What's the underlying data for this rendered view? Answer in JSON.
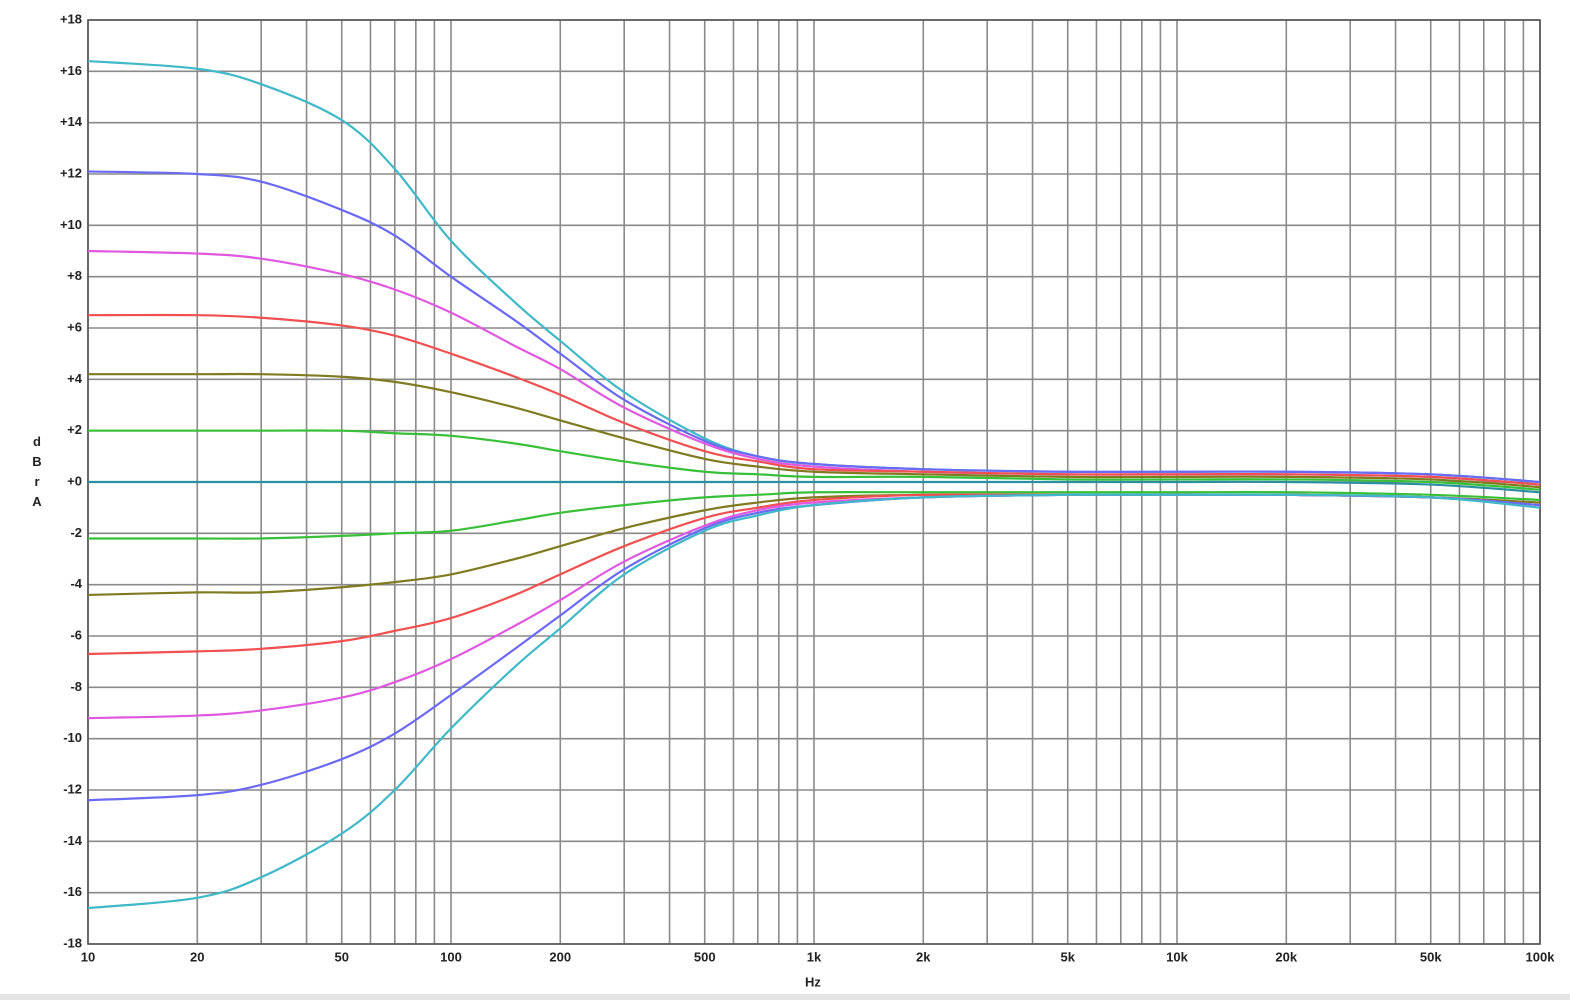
{
  "chart_data": {
    "type": "line",
    "x_label": "Hz",
    "y_label": "dBr A",
    "log_x": true,
    "grid": true,
    "xlim": [
      10,
      100000
    ],
    "ylim": [
      -18,
      18
    ],
    "xticks": [
      10,
      20,
      50,
      100,
      200,
      500,
      {
        "value": 1000,
        "label": "1k"
      },
      {
        "value": 2000,
        "label": "2k"
      },
      {
        "value": 5000,
        "label": "5k"
      },
      {
        "value": 10000,
        "label": "10k"
      },
      {
        "value": 20000,
        "label": "20k"
      },
      {
        "value": 50000,
        "label": "50k"
      },
      {
        "value": 100000,
        "label": "100k"
      }
    ],
    "xminorticks": [
      30,
      40,
      60,
      70,
      80,
      90,
      300,
      400,
      600,
      700,
      800,
      900,
      3000,
      4000,
      6000,
      7000,
      8000,
      9000,
      30000,
      40000,
      60000,
      70000,
      80000,
      90000
    ],
    "yticks": [
      {
        "value": 18,
        "label": "+18"
      },
      {
        "value": 16,
        "label": "+16"
      },
      {
        "value": 14,
        "label": "+14"
      },
      {
        "value": 12,
        "label": "+12"
      },
      {
        "value": 10,
        "label": "+10"
      },
      {
        "value": 8,
        "label": "+8"
      },
      {
        "value": 6,
        "label": "+6"
      },
      {
        "value": 4,
        "label": "+4"
      },
      {
        "value": 2,
        "label": "+2"
      },
      {
        "value": 0,
        "label": "+0"
      },
      -2,
      -4,
      -6,
      -8,
      -10,
      -12,
      -14,
      -16,
      -18
    ],
    "x": [
      10,
      20,
      30,
      50,
      70,
      100,
      150,
      200,
      300,
      500,
      700,
      1000,
      2000,
      5000,
      10000,
      20000,
      50000,
      100000
    ],
    "series": [
      {
        "color": "#3fb8c8",
        "values": [
          16.4,
          16.1,
          15.5,
          14.1,
          12.2,
          9.4,
          7.0,
          5.5,
          3.5,
          1.7,
          1.0,
          0.7,
          0.5,
          0.4,
          0.4,
          0.4,
          0.3,
          0.0
        ]
      },
      {
        "color": "#6a6af5",
        "values": [
          12.1,
          12.0,
          11.7,
          10.6,
          9.6,
          8.0,
          6.3,
          5.0,
          3.2,
          1.6,
          1.0,
          0.7,
          0.5,
          0.4,
          0.4,
          0.4,
          0.3,
          0.0
        ]
      },
      {
        "color": "#e058e0",
        "values": [
          9.0,
          8.9,
          8.7,
          8.1,
          7.5,
          6.6,
          5.3,
          4.4,
          2.9,
          1.5,
          0.9,
          0.6,
          0.4,
          0.3,
          0.3,
          0.3,
          0.2,
          -0.1
        ]
      },
      {
        "color": "#f05050",
        "values": [
          6.5,
          6.5,
          6.4,
          6.1,
          5.7,
          5.0,
          4.1,
          3.4,
          2.3,
          1.2,
          0.8,
          0.5,
          0.4,
          0.3,
          0.3,
          0.3,
          0.2,
          -0.1
        ]
      },
      {
        "color": "#807a20",
        "values": [
          4.2,
          4.2,
          4.2,
          4.1,
          3.9,
          3.5,
          2.9,
          2.4,
          1.7,
          0.9,
          0.6,
          0.4,
          0.3,
          0.2,
          0.2,
          0.2,
          0.1,
          -0.2
        ]
      },
      {
        "color": "#38c038",
        "values": [
          2.0,
          2.0,
          2.0,
          2.0,
          1.9,
          1.8,
          1.5,
          1.2,
          0.8,
          0.4,
          0.3,
          0.2,
          0.2,
          0.1,
          0.1,
          0.1,
          0.0,
          -0.3
        ]
      },
      {
        "color": "#2a8fa0",
        "values": [
          0,
          0,
          0,
          0,
          0,
          0,
          0,
          0,
          0,
          0,
          0,
          0,
          0,
          0,
          0,
          0,
          -0.1,
          -0.4
        ]
      },
      {
        "color": "#38c038",
        "values": [
          -2.2,
          -2.2,
          -2.2,
          -2.1,
          -2.0,
          -1.9,
          -1.5,
          -1.2,
          -0.9,
          -0.6,
          -0.5,
          -0.4,
          -0.4,
          -0.4,
          -0.4,
          -0.4,
          -0.5,
          -0.7
        ]
      },
      {
        "color": "#807a20",
        "values": [
          -4.4,
          -4.3,
          -4.3,
          -4.1,
          -3.9,
          -3.6,
          -3.0,
          -2.5,
          -1.8,
          -1.1,
          -0.8,
          -0.6,
          -0.5,
          -0.5,
          -0.5,
          -0.5,
          -0.6,
          -0.8
        ]
      },
      {
        "color": "#f05050",
        "values": [
          -6.7,
          -6.6,
          -6.5,
          -6.2,
          -5.8,
          -5.3,
          -4.4,
          -3.6,
          -2.5,
          -1.4,
          -1.0,
          -0.7,
          -0.5,
          -0.5,
          -0.5,
          -0.5,
          -0.6,
          -0.9
        ]
      },
      {
        "color": "#e058e0",
        "values": [
          -9.2,
          -9.1,
          -8.9,
          -8.4,
          -7.8,
          -6.9,
          -5.6,
          -4.6,
          -3.1,
          -1.7,
          -1.1,
          -0.8,
          -0.6,
          -0.5,
          -0.5,
          -0.5,
          -0.6,
          -0.9
        ]
      },
      {
        "color": "#6a6af5",
        "values": [
          -12.4,
          -12.2,
          -11.8,
          -10.8,
          -9.8,
          -8.3,
          -6.5,
          -5.2,
          -3.4,
          -1.8,
          -1.2,
          -0.9,
          -0.6,
          -0.5,
          -0.5,
          -0.5,
          -0.6,
          -0.9
        ]
      },
      {
        "color": "#3fb8c8",
        "values": [
          -16.6,
          -16.2,
          -15.4,
          -13.7,
          -12.0,
          -9.6,
          -7.2,
          -5.7,
          -3.6,
          -1.9,
          -1.3,
          -0.9,
          -0.6,
          -0.5,
          -0.5,
          -0.5,
          -0.6,
          -1.0
        ]
      }
    ]
  }
}
